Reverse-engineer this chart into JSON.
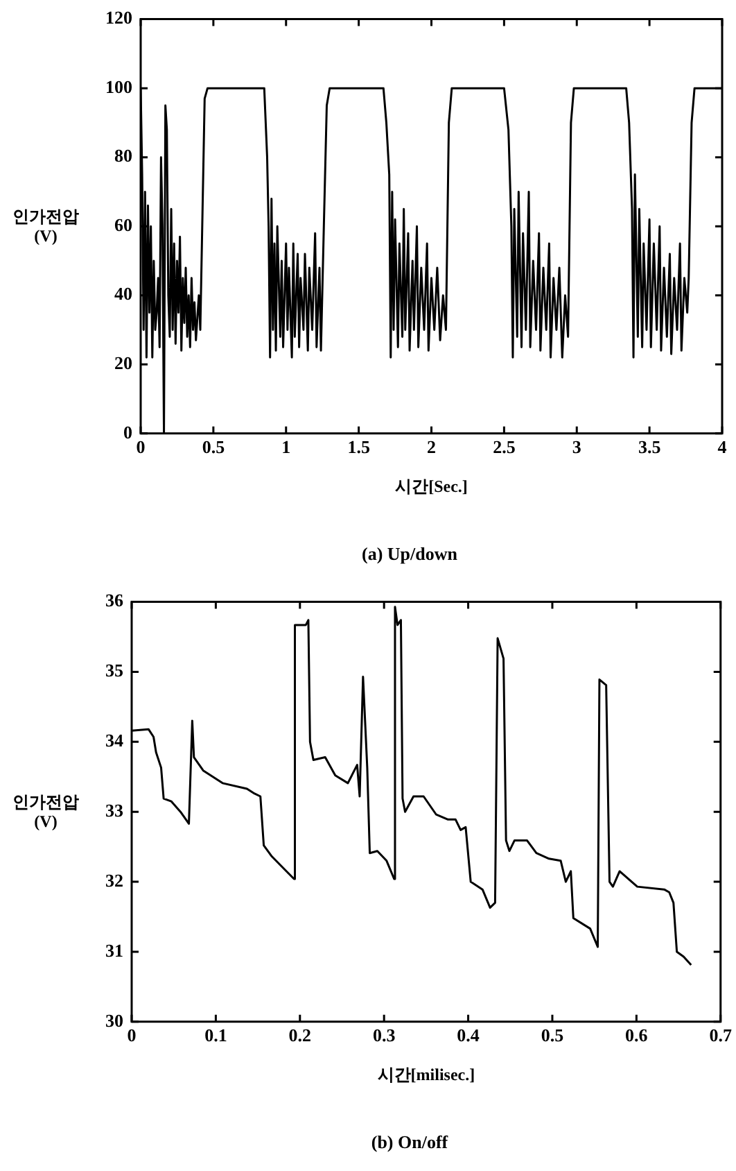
{
  "chart_data": [
    {
      "type": "line",
      "title": "(a) Up/down",
      "xlabel": "시간[Sec.]",
      "ylabel": "인가전압 (V)",
      "xlim": [
        0,
        4
      ],
      "xticks": [
        0,
        0.5,
        1,
        1.5,
        2,
        2.5,
        3,
        3.5,
        4
      ],
      "ylim": [
        0,
        120
      ],
      "yticks": [
        0,
        20,
        40,
        60,
        80,
        100,
        120
      ],
      "grid": false,
      "legend": false,
      "marker": "none",
      "line_style": "solid",
      "series": [
        {
          "color": "#000000",
          "x": [
            0,
            0.01,
            0.02,
            0.03,
            0.04,
            0.05,
            0.06,
            0.07,
            0.08,
            0.09,
            0.1,
            0.11,
            0.12,
            0.13,
            0.14,
            0.15,
            0.16,
            0.17,
            0.18,
            0.19,
            0.2,
            0.21,
            0.22,
            0.23,
            0.24,
            0.25,
            0.26,
            0.27,
            0.28,
            0.29,
            0.3,
            0.31,
            0.32,
            0.33,
            0.34,
            0.35,
            0.36,
            0.37,
            0.38,
            0.4,
            0.41,
            0.44,
            0.46,
            0.85,
            0.87,
            0.88,
            0.89,
            0.9,
            0.91,
            0.92,
            0.93,
            0.94,
            0.96,
            0.97,
            0.98,
            1.0,
            1.01,
            1.02,
            1.04,
            1.05,
            1.06,
            1.08,
            1.09,
            1.1,
            1.12,
            1.13,
            1.15,
            1.16,
            1.18,
            1.2,
            1.21,
            1.23,
            1.24,
            1.26,
            1.28,
            1.3,
            1.67,
            1.69,
            1.71,
            1.72,
            1.73,
            1.74,
            1.75,
            1.77,
            1.78,
            1.8,
            1.81,
            1.82,
            1.84,
            1.85,
            1.87,
            1.88,
            1.9,
            1.91,
            1.93,
            1.95,
            1.97,
            1.98,
            2.0,
            2.02,
            2.04,
            2.06,
            2.08,
            2.1,
            2.12,
            2.14,
            2.5,
            2.53,
            2.55,
            2.56,
            2.57,
            2.59,
            2.6,
            2.62,
            2.63,
            2.65,
            2.67,
            2.68,
            2.7,
            2.72,
            2.74,
            2.75,
            2.77,
            2.79,
            2.81,
            2.82,
            2.84,
            2.86,
            2.88,
            2.9,
            2.92,
            2.94,
            2.96,
            2.98,
            3.34,
            3.36,
            3.38,
            3.39,
            3.4,
            3.42,
            3.43,
            3.45,
            3.46,
            3.48,
            3.5,
            3.51,
            3.53,
            3.55,
            3.57,
            3.58,
            3.6,
            3.62,
            3.64,
            3.65,
            3.67,
            3.69,
            3.71,
            3.72,
            3.74,
            3.76,
            3.77,
            3.79,
            3.81,
            4.0
          ],
          "values": [
            100,
            75,
            30,
            70,
            22,
            66,
            35,
            60,
            22,
            50,
            30,
            35,
            45,
            25,
            80,
            60,
            0,
            95,
            88,
            40,
            28,
            65,
            30,
            55,
            26,
            50,
            35,
            57,
            24,
            45,
            32,
            48,
            28,
            40,
            25,
            45,
            30,
            38,
            27,
            40,
            30,
            97,
            100,
            100,
            80,
            60,
            22,
            68,
            30,
            55,
            24,
            60,
            28,
            50,
            25,
            55,
            30,
            48,
            22,
            55,
            28,
            52,
            25,
            45,
            30,
            52,
            24,
            48,
            30,
            58,
            25,
            48,
            24,
            60,
            95,
            100,
            100,
            90,
            75,
            22,
            70,
            30,
            62,
            25,
            55,
            28,
            65,
            30,
            58,
            24,
            50,
            30,
            60,
            25,
            48,
            30,
            55,
            24,
            45,
            30,
            48,
            27,
            40,
            30,
            90,
            100,
            100,
            88,
            60,
            22,
            65,
            28,
            70,
            25,
            58,
            30,
            70,
            25,
            50,
            30,
            58,
            24,
            48,
            30,
            55,
            22,
            45,
            30,
            48,
            22,
            40,
            28,
            90,
            100,
            100,
            90,
            65,
            22,
            75,
            28,
            65,
            25,
            55,
            30,
            62,
            25,
            55,
            30,
            60,
            24,
            48,
            28,
            52,
            23,
            45,
            30,
            55,
            24,
            45,
            35,
            45,
            90,
            100,
            100
          ]
        }
      ]
    },
    {
      "type": "line",
      "title": "(b) On/off",
      "xlabel": "시간[milisec.]",
      "ylabel": "인가전압 (V)",
      "xlim": [
        0,
        0.7
      ],
      "xticks": [
        0,
        0.1,
        0.2,
        0.3,
        0.4,
        0.5,
        0.6,
        0.7
      ],
      "ylim": [
        30,
        36
      ],
      "yticks": [
        30,
        31,
        32,
        33,
        34,
        35,
        36
      ],
      "grid": false,
      "legend": false,
      "marker": "none",
      "line_style": "solid",
      "series": [
        {
          "color": "#000000",
          "x": [
            0,
            0.02,
            0.026,
            0.029,
            0.035,
            0.038,
            0.047,
            0.058,
            0.068,
            0.072,
            0.074,
            0.085,
            0.108,
            0.137,
            0.146,
            0.153,
            0.157,
            0.166,
            0.184,
            0.193,
            0.194,
            0.207,
            0.21,
            0.212,
            0.216,
            0.23,
            0.242,
            0.257,
            0.268,
            0.271,
            0.275,
            0.28,
            0.283,
            0.292,
            0.303,
            0.312,
            0.313,
            0.316,
            0.32,
            0.322,
            0.325,
            0.335,
            0.347,
            0.362,
            0.376,
            0.385,
            0.391,
            0.397,
            0.403,
            0.417,
            0.426,
            0.432,
            0.435,
            0.442,
            0.445,
            0.449,
            0.455,
            0.47,
            0.481,
            0.496,
            0.51,
            0.516,
            0.522,
            0.525,
            0.545,
            0.554,
            0.556,
            0.564,
            0.568,
            0.572,
            0.58,
            0.601,
            0.633,
            0.639,
            0.644,
            0.648,
            0.656,
            0.665
          ],
          "values": [
            34.16,
            34.18,
            34.07,
            33.85,
            33.63,
            33.19,
            33.15,
            33.0,
            32.83,
            34.3,
            33.78,
            33.59,
            33.41,
            33.33,
            33.26,
            33.22,
            32.52,
            32.37,
            32.15,
            32.04,
            35.67,
            35.67,
            35.74,
            34.0,
            33.74,
            33.78,
            33.52,
            33.41,
            33.67,
            33.22,
            34.93,
            33.63,
            32.41,
            32.44,
            32.3,
            32.04,
            35.93,
            35.67,
            35.74,
            33.19,
            33.0,
            33.22,
            33.22,
            32.96,
            32.89,
            32.89,
            32.74,
            32.78,
            32.0,
            31.89,
            31.63,
            31.7,
            35.48,
            35.19,
            32.59,
            32.44,
            32.59,
            32.59,
            32.41,
            32.33,
            32.3,
            32.0,
            32.15,
            31.48,
            31.33,
            31.07,
            34.89,
            34.81,
            32.0,
            31.93,
            32.15,
            31.93,
            31.89,
            31.85,
            31.7,
            31.0,
            30.93,
            30.81
          ]
        }
      ]
    }
  ]
}
